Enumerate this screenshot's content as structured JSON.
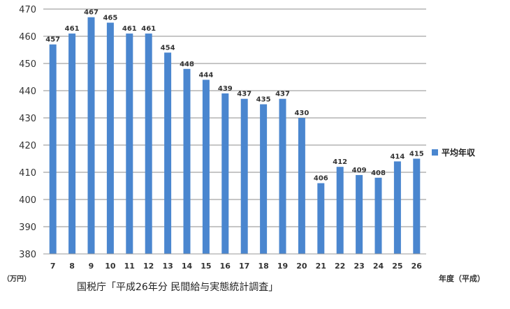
{
  "chart_data": {
    "type": "bar",
    "categories": [
      "7",
      "8",
      "9",
      "10",
      "11",
      "12",
      "13",
      "14",
      "15",
      "16",
      "17",
      "18",
      "19",
      "20",
      "21",
      "22",
      "23",
      "24",
      "25",
      "26"
    ],
    "series": [
      {
        "name": "平均年収",
        "values": [
          457,
          461,
          467,
          465,
          461,
          461,
          454,
          448,
          444,
          439,
          437,
          435,
          437,
          430,
          406,
          412,
          409,
          408,
          414,
          415
        ]
      }
    ],
    "ylim": [
      380,
      470
    ],
    "yticks": [
      380,
      390,
      400,
      410,
      420,
      430,
      440,
      450,
      460,
      470
    ],
    "ylabel": "（万円）",
    "xlabel": "年度（平成）",
    "source_note": "国税庁「平成26年分 民間給与実態統計調査」",
    "legend_position": "right",
    "grid": true,
    "bar_color": "#4a86cf"
  }
}
